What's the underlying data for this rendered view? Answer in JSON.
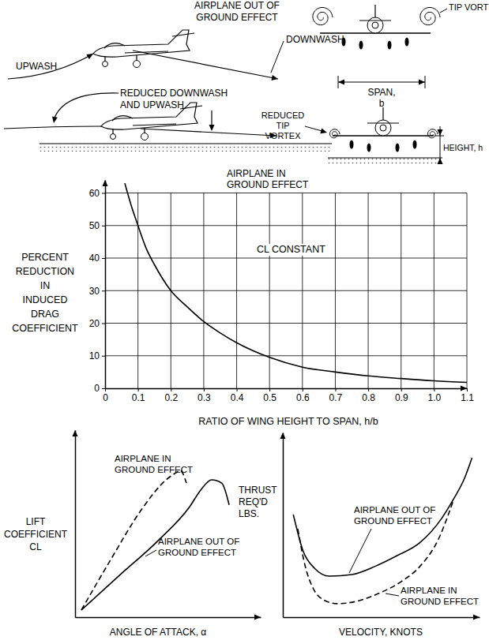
{
  "diagram": {
    "out_of_ground_effect": {
      "title": [
        "AIRPLANE OUT OF",
        "GROUND EFFECT"
      ],
      "tip_vortex": "TIP VORTEX",
      "upwash": "UPWASH",
      "downwash": "DOWNWASH"
    },
    "in_ground_effect": {
      "title": [
        "AIRPLANE IN",
        "GROUND EFFECT"
      ],
      "reduced_wash": [
        "REDUCED DOWNWASH",
        "AND UPWASH"
      ],
      "span": [
        "SPAN,",
        "b"
      ],
      "reduced_tip_vortex": [
        "REDUCED",
        "TIP",
        "VORTEX"
      ],
      "height": "HEIGHT, h"
    }
  },
  "chart_data": [
    {
      "type": "line",
      "x_label": "RATIO OF WING HEIGHT TO SPAN, h/b",
      "y_label": [
        "PERCENT",
        "REDUCTION",
        "IN",
        "INDUCED",
        "DRAG",
        "COEFFICIENT"
      ],
      "annotations": [
        "CL CONSTANT"
      ],
      "xlim": [
        0,
        1.1
      ],
      "ylim": [
        0,
        64
      ],
      "xticks": [
        0,
        0.1,
        0.2,
        0.3,
        0.4,
        0.5,
        0.6,
        0.7,
        0.8,
        0.9,
        {
          "value": 1,
          "label": "1.0"
        },
        1.1
      ],
      "yticks": [
        0,
        10,
        20,
        30,
        40,
        50,
        60
      ],
      "grid": true,
      "series": [
        {
          "x": [
            0.06,
            0.08,
            0.1,
            0.125,
            0.15,
            0.2,
            0.25,
            0.3,
            0.35,
            0.4,
            0.5,
            0.6,
            0.7,
            0.8,
            0.9,
            1.0,
            1.1
          ],
          "values": [
            63,
            56,
            50,
            43,
            38,
            30,
            25,
            20.5,
            17,
            14,
            9.5,
            6.5,
            5,
            3.8,
            3,
            2.3,
            1.8
          ],
          "color": "#000000",
          "line_style": "solid"
        }
      ]
    },
    {
      "type": "line",
      "x_label": "ANGLE OF ATTACK, α",
      "y_label": [
        "LIFT",
        "COEFFICIENT",
        "CL"
      ],
      "xlim": [
        0,
        10
      ],
      "ylim": [
        0,
        10
      ],
      "tick_labels": false,
      "series": [
        {
          "name": "AIRPLANE OUT OF GROUND EFFECT",
          "x": [
            0.34,
            2.34,
            4.47,
            6.17,
            6.8,
            7.36,
            7.9,
            8.3
          ],
          "values": [
            0.38,
            2.19,
            4.09,
            5.9,
            6.84,
            7.34,
            7.17,
            6.0
          ],
          "color": "#000000",
          "line_style": "solid"
        },
        {
          "name": "AIRPLANE IN GROUND EFFECT",
          "x": [
            0.34,
            1.9,
            3.6,
            4.9,
            5.5,
            5.66,
            6.0
          ],
          "values": [
            0.38,
            3.04,
            5.78,
            7.34,
            7.76,
            7.85,
            7.17
          ],
          "color": "#000000",
          "line_style": "dashed"
        }
      ]
    },
    {
      "type": "line",
      "x_label": "VELOCITY, KNOTS",
      "y_label": [
        "THRUST",
        "REQ'D",
        "LBS."
      ],
      "xlim": [
        0,
        10.5
      ],
      "ylim": [
        0,
        10
      ],
      "tick_labels": false,
      "series": [
        {
          "name": "AIRPLANE OUT OF GROUND EFFECT",
          "x": [
            0.56,
            1.08,
            1.69,
            2.49,
            3.69,
            4.9,
            6.1,
            7.3,
            8.5,
            9.1,
            9.7,
            10.1
          ],
          "values": [
            5.56,
            3.59,
            2.65,
            2.22,
            2.31,
            2.74,
            3.33,
            4.02,
            5.38,
            6.37,
            7.52,
            8.63
          ],
          "color": "#000000",
          "line_style": "solid"
        },
        {
          "name": "AIRPLANE IN GROUND EFFECT",
          "x": [
            0.8,
            1.2,
            1.61,
            2.17,
            2.89,
            3.9,
            5.1,
            6.31,
            7.31,
            8.31,
            9.12
          ],
          "values": [
            4.79,
            2.74,
            1.58,
            0.94,
            0.73,
            0.85,
            1.28,
            1.92,
            2.74,
            4.23,
            6.37
          ],
          "color": "#000000",
          "line_style": "dashed"
        }
      ]
    }
  ]
}
